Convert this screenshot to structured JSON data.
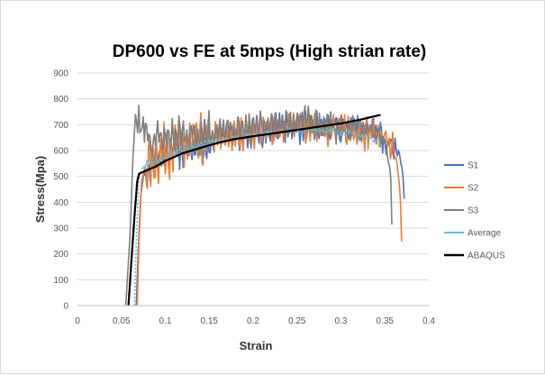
{
  "chart_data": {
    "type": "line",
    "title": "DP600 vs FE at 5mps (High strian rate)",
    "xlabel": "Strain",
    "ylabel": "Stress(Mpa)",
    "xlim": [
      0,
      0.4
    ],
    "ylim": [
      0,
      900
    ],
    "x_ticks": [
      "0",
      "0.05",
      "0.1",
      "0.15",
      "0.2",
      "0.25",
      "0.3",
      "0.35",
      "0.4"
    ],
    "y_ticks": [
      "0",
      "100",
      "200",
      "300",
      "400",
      "500",
      "600",
      "700",
      "800",
      "900"
    ],
    "grid": "horizontal",
    "legend_position": "right",
    "series": [
      {
        "name": "S1",
        "color": "#4472c4",
        "style": "solid",
        "x": [
          0.067,
          0.069,
          0.072,
          0.075,
          0.08,
          0.09,
          0.1,
          0.12,
          0.15,
          0.18,
          0.2,
          0.22,
          0.25,
          0.28,
          0.3,
          0.32,
          0.34,
          0.35,
          0.36,
          0.365,
          0.368,
          0.37,
          0.372
        ],
        "y": [
          0,
          200,
          420,
          500,
          520,
          560,
          580,
          600,
          630,
          660,
          670,
          680,
          690,
          690,
          680,
          690,
          670,
          650,
          620,
          590,
          560,
          520,
          420
        ],
        "noise": 60
      },
      {
        "name": "S2",
        "color": "#ed7d31",
        "style": "solid",
        "x": [
          0.068,
          0.07,
          0.073,
          0.077,
          0.085,
          0.095,
          0.11,
          0.13,
          0.15,
          0.18,
          0.2,
          0.22,
          0.25,
          0.28,
          0.3,
          0.32,
          0.34,
          0.35,
          0.36,
          0.365,
          0.368,
          0.369
        ],
        "y": [
          0,
          250,
          480,
          540,
          560,
          590,
          610,
          620,
          640,
          660,
          670,
          680,
          690,
          690,
          680,
          680,
          660,
          650,
          600,
          520,
          380,
          250
        ],
        "noise": 65
      },
      {
        "name": "S3",
        "color": "#7f7f7f",
        "style": "solid",
        "x": [
          0.055,
          0.06,
          0.063,
          0.066,
          0.07,
          0.08,
          0.09,
          0.1,
          0.12,
          0.15,
          0.18,
          0.2,
          0.22,
          0.25,
          0.28,
          0.3,
          0.32,
          0.34,
          0.35,
          0.357,
          0.358
        ],
        "y": [
          0,
          280,
          560,
          740,
          700,
          650,
          640,
          650,
          660,
          670,
          680,
          690,
          700,
          720,
          700,
          680,
          690,
          670,
          640,
          500,
          320
        ],
        "noise": 55
      },
      {
        "name": "Average",
        "color": "#5bc0eb",
        "style": "dotted",
        "x": [
          0.065,
          0.067,
          0.07,
          0.075,
          0.09,
          0.1,
          0.12,
          0.15,
          0.18,
          0.2,
          0.22,
          0.25,
          0.28,
          0.3,
          0.32,
          0.34,
          0.35
        ],
        "y": [
          0,
          250,
          500,
          540,
          560,
          580,
          600,
          630,
          650,
          660,
          670,
          680,
          680,
          670,
          660,
          640,
          610
        ],
        "noise": 12
      },
      {
        "name": "ABAQUS",
        "color": "#000000",
        "style": "solid",
        "x": [
          0.058,
          0.062,
          0.065,
          0.068,
          0.07,
          0.08,
          0.09,
          0.1,
          0.12,
          0.14,
          0.16,
          0.18,
          0.2,
          0.22,
          0.24,
          0.26,
          0.28,
          0.3,
          0.32,
          0.345
        ],
        "y": [
          0,
          200,
          350,
          480,
          510,
          525,
          540,
          560,
          590,
          610,
          630,
          645,
          655,
          665,
          675,
          685,
          695,
          705,
          718,
          738
        ],
        "noise": 0
      }
    ]
  }
}
